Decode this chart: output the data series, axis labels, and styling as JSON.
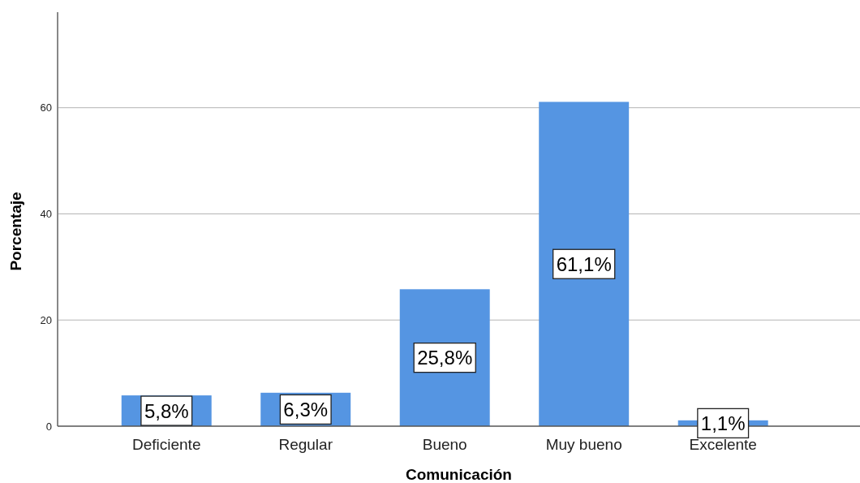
{
  "chart_data": {
    "type": "bar",
    "xlabel": "Comunicación",
    "ylabel": "Porcentaje",
    "categories": [
      "Deficiente",
      "Regular",
      "Bueno",
      "Muy bueno",
      "Excelente"
    ],
    "values": [
      5.8,
      6.3,
      25.8,
      61.1,
      1.1
    ],
    "color": "#5595e2",
    "value_labels": [
      "5,8%",
      "6,3%",
      "25,8%",
      "61,1%",
      "1,1%"
    ],
    "ylim": [
      0,
      78
    ],
    "yticks": [
      0,
      20,
      40,
      60
    ],
    "grid": "y"
  }
}
